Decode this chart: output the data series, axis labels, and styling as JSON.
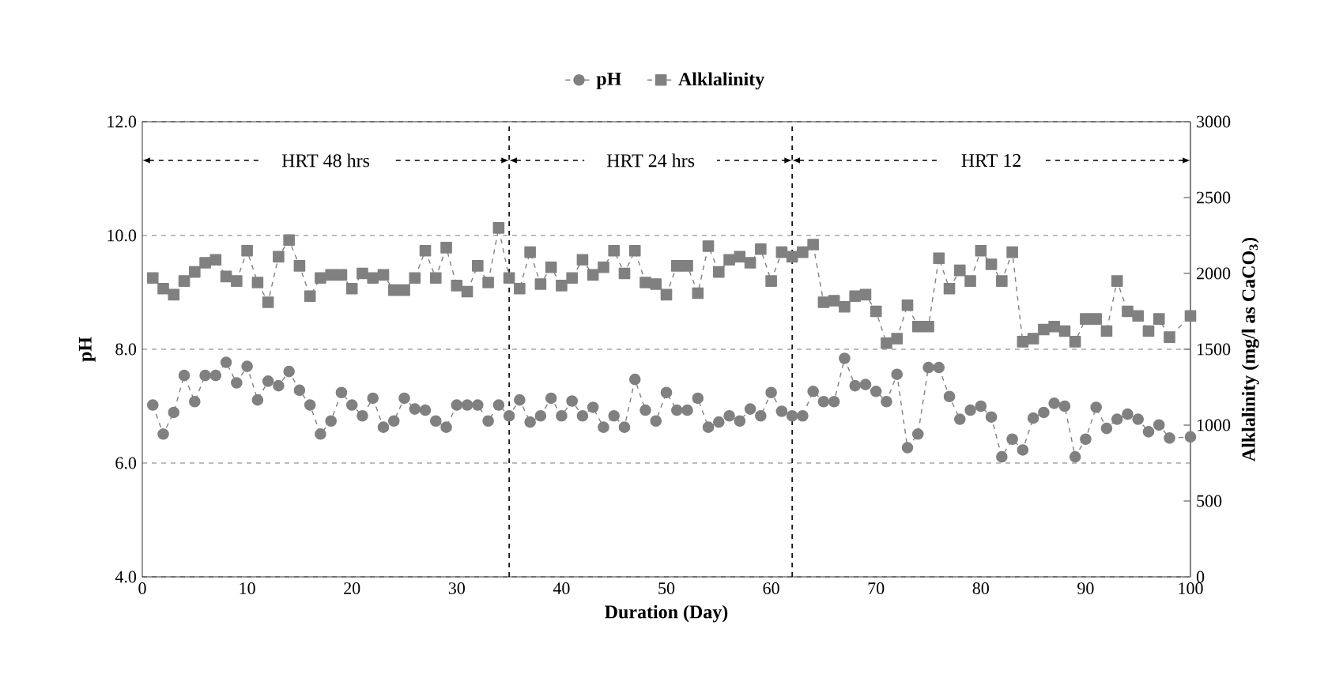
{
  "chart_data": {
    "type": "line",
    "xlabel": "Duration (Day)",
    "ylabel": "pH",
    "y2label": "Alklalinity (mg/l as CaCO$_{3}$)",
    "xlim": [
      0,
      100
    ],
    "xticks": [
      0,
      10,
      20,
      30,
      40,
      50,
      60,
      70,
      80,
      90,
      100
    ],
    "ylim": [
      4,
      12
    ],
    "yticks": [
      {
        "value": 4,
        "label": "4.0"
      },
      {
        "value": 6,
        "label": "6.0"
      },
      {
        "value": 8,
        "label": "8.0"
      },
      {
        "value": 10,
        "label": "10.0"
      },
      {
        "value": 12,
        "label": "12.0"
      }
    ],
    "y2lim": [
      0,
      3000
    ],
    "y2ticks": [
      0,
      500,
      1000,
      1500,
      2000,
      2500,
      3000
    ],
    "grid": "y",
    "legend": "top",
    "line_style": "dashed",
    "ref_lines": [
      {
        "axis": "x",
        "value": 35,
        "color": "#000000",
        "line_style": "dashed"
      },
      {
        "axis": "x",
        "value": 62,
        "color": "#000000",
        "line_style": "dashed"
      }
    ],
    "annotations": [
      "HRT 48 hrs",
      "HRT 24 hrs",
      "HRT 12"
    ],
    "series": [
      {
        "name": "pH",
        "color": "#808080",
        "marker": "circle",
        "x": [
          1,
          2,
          3,
          4,
          5,
          6,
          7,
          8,
          9,
          10,
          11,
          12,
          13,
          14,
          15,
          16,
          17,
          18,
          19,
          20,
          21,
          22,
          23,
          24,
          25,
          26,
          27,
          28,
          29,
          30,
          31,
          32,
          33,
          34,
          35,
          36,
          37,
          38,
          39,
          40,
          41,
          42,
          43,
          44,
          45,
          46,
          47,
          48,
          49,
          50,
          51,
          52,
          53,
          54,
          55,
          56,
          57,
          58,
          59,
          60,
          61,
          62,
          63,
          64,
          65,
          66,
          67,
          68,
          69,
          70,
          71,
          72,
          73,
          74,
          75,
          76,
          77,
          78,
          79,
          80,
          81,
          82,
          83,
          84,
          85,
          86,
          87,
          88,
          89,
          90,
          91,
          92,
          93,
          94,
          95,
          96,
          97,
          98,
          100
        ],
        "values": [
          7.02,
          6.51,
          6.89,
          7.54,
          7.08,
          7.54,
          7.54,
          7.77,
          7.41,
          7.7,
          7.11,
          7.44,
          7.36,
          7.61,
          7.28,
          7.02,
          6.51,
          6.74,
          7.24,
          7.02,
          6.83,
          7.14,
          6.63,
          6.74,
          7.14,
          6.95,
          6.93,
          6.74,
          6.63,
          7.02,
          7.02,
          7.02,
          6.74,
          7.02,
          6.83,
          7.11,
          6.72,
          6.83,
          7.14,
          6.83,
          7.09,
          6.83,
          6.98,
          6.63,
          6.83,
          6.63,
          7.47,
          6.93,
          6.74,
          7.24,
          6.93,
          6.93,
          7.14,
          6.63,
          6.72,
          6.83,
          6.74,
          6.95,
          6.83,
          7.24,
          6.91,
          6.83,
          6.83,
          7.26,
          7.08,
          7.08,
          7.84,
          7.36,
          7.38,
          7.26,
          7.08,
          7.56,
          6.27,
          6.51,
          7.68,
          7.68,
          7.17,
          6.77,
          6.93,
          7.0,
          6.81,
          6.11,
          6.42,
          6.23,
          6.79,
          6.89,
          7.05,
          7.0,
          6.11,
          6.42,
          6.98,
          6.61,
          6.77,
          6.86,
          6.77,
          6.55,
          6.67,
          6.44,
          6.46
        ]
      },
      {
        "name": "Alklalinity",
        "color": "#808080",
        "marker": "square",
        "axis": "y2",
        "x": [
          1,
          2,
          3,
          4,
          5,
          6,
          7,
          8,
          9,
          10,
          11,
          12,
          13,
          14,
          15,
          16,
          17,
          18,
          19,
          20,
          21,
          22,
          23,
          24,
          25,
          26,
          27,
          28,
          29,
          30,
          31,
          32,
          33,
          34,
          35,
          36,
          37,
          38,
          39,
          40,
          41,
          42,
          43,
          44,
          45,
          46,
          47,
          48,
          49,
          50,
          51,
          52,
          53,
          54,
          55,
          56,
          57,
          58,
          59,
          60,
          61,
          62,
          63,
          64,
          65,
          66,
          67,
          68,
          69,
          70,
          71,
          72,
          73,
          74,
          75,
          76,
          77,
          78,
          79,
          80,
          81,
          82,
          83,
          84,
          85,
          86,
          87,
          88,
          89,
          90,
          91,
          92,
          93,
          94,
          95,
          96,
          97,
          98,
          100
        ],
        "values": [
          1970,
          1900,
          1860,
          1950,
          2010,
          2070,
          2090,
          1980,
          1950,
          2150,
          1940,
          1810,
          2110,
          2220,
          2050,
          1850,
          1970,
          1990,
          1990,
          1900,
          2000,
          1970,
          1990,
          1890,
          1890,
          1970,
          2150,
          1970,
          2170,
          1920,
          1880,
          2050,
          1940,
          2300,
          1970,
          1900,
          2140,
          1930,
          2040,
          1920,
          1970,
          2090,
          1990,
          2040,
          2150,
          2000,
          2150,
          1940,
          1930,
          1860,
          2050,
          2050,
          1870,
          2180,
          2010,
          2090,
          2110,
          2070,
          2160,
          1950,
          2140,
          2110,
          2140,
          2190,
          1810,
          1820,
          1780,
          1850,
          1860,
          1750,
          1540,
          1570,
          1790,
          1650,
          1650,
          2100,
          1900,
          2020,
          1950,
          2150,
          2060,
          1950,
          2140,
          1550,
          1570,
          1630,
          1650,
          1620,
          1550,
          1700,
          1700,
          1620,
          1950,
          1750,
          1720,
          1620,
          1700,
          1580,
          1720
        ]
      }
    ]
  }
}
